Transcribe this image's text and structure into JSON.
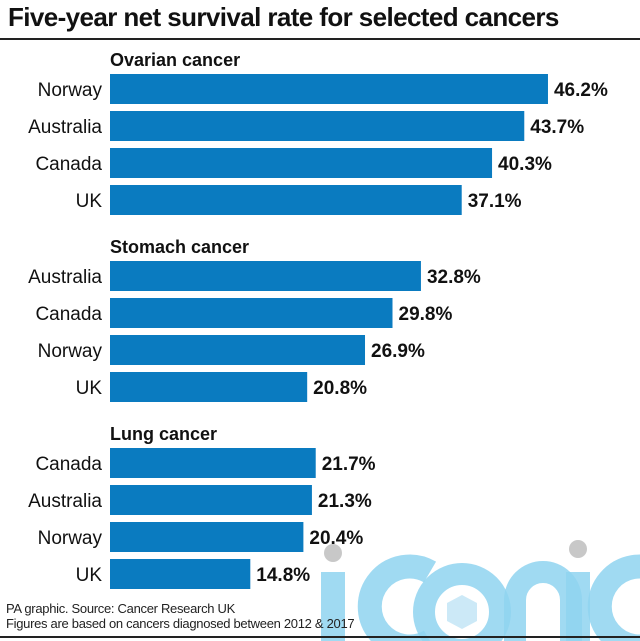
{
  "title": "Five-year net survival rate for selected cancers",
  "footer": {
    "line1": "PA graphic. Source: Cancer Research UK",
    "line2": "Figures are based on cancers diagnosed between 2012 & 2017"
  },
  "watermark": "iconic",
  "colors": {
    "bar": "#0a7bc0",
    "watermark": "#8fd3f0",
    "watermark_dot": "#c8c8c8"
  },
  "chart_data": {
    "type": "bar",
    "orientation": "horizontal",
    "title": "Five-year net survival rate for selected cancers",
    "xlabel": "",
    "ylabel": "",
    "xlim": [
      0,
      50
    ],
    "unit": "%",
    "grid": false,
    "groups": [
      {
        "name": "Ovarian cancer",
        "categories": [
          "Norway",
          "Australia",
          "Canada",
          "UK"
        ],
        "values": [
          46.2,
          43.7,
          40.3,
          37.1
        ],
        "labels": [
          "46.2%",
          "43.7%",
          "40.3%",
          "37.1%"
        ]
      },
      {
        "name": "Stomach cancer",
        "categories": [
          "Australia",
          "Canada",
          "Norway",
          "UK"
        ],
        "values": [
          32.8,
          29.8,
          26.9,
          20.8
        ],
        "labels": [
          "32.8%",
          "29.8%",
          "26.9%",
          "20.8%"
        ]
      },
      {
        "name": "Lung cancer",
        "categories": [
          "Canada",
          "Australia",
          "Norway",
          "UK"
        ],
        "values": [
          21.7,
          21.3,
          20.4,
          14.8
        ],
        "labels": [
          "21.7%",
          "21.3%",
          "20.4%",
          "14.8%"
        ]
      }
    ]
  }
}
